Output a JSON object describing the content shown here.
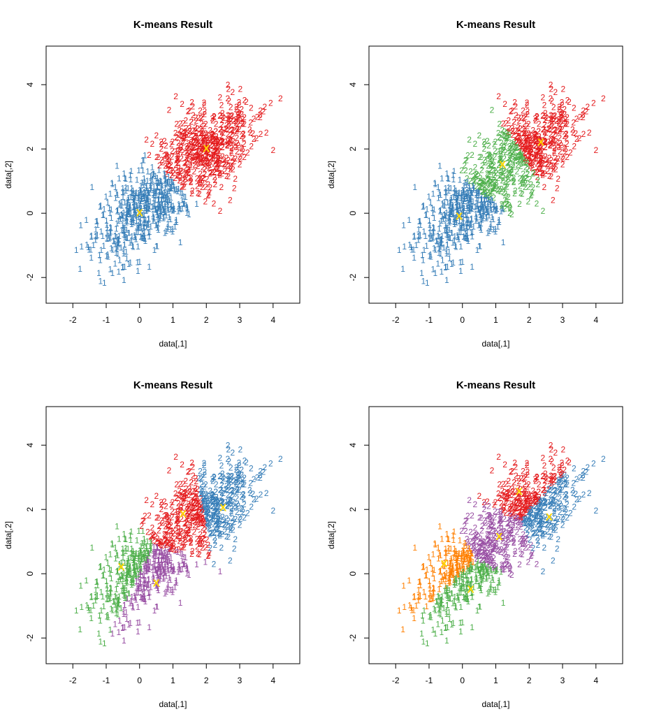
{
  "colors": {
    "red": "#e41a1c",
    "blue": "#377eb8",
    "green": "#4daf4a",
    "purple": "#984ea3",
    "orange": "#ff7f00",
    "centroid": "#ffd700"
  },
  "chart_data": [
    {
      "type": "scatter",
      "title": "K-means Result",
      "xlabel": "data[,1]",
      "ylabel": "data[,2]",
      "xlim": [
        -2.8,
        4.8
      ],
      "ylim": [
        -2.8,
        5.2
      ],
      "xticks": [
        -2,
        -1,
        0,
        1,
        2,
        3,
        4
      ],
      "yticks": [
        -2,
        0,
        2,
        4
      ],
      "k": 2,
      "point_labels": [
        "1",
        "2"
      ],
      "centroid_label": "X",
      "clusters": [
        {
          "id": 1,
          "label": "1",
          "color": "blue",
          "center": [
            0.0,
            0.0
          ]
        },
        {
          "id": 2,
          "label": "2",
          "color": "red",
          "center": [
            2.0,
            2.0
          ]
        }
      ],
      "centroids": [
        [
          0.0,
          0.0
        ],
        [
          2.0,
          2.0
        ]
      ]
    },
    {
      "type": "scatter",
      "title": "K-means Result",
      "xlabel": "data[,1]",
      "ylabel": "data[,2]",
      "xlim": [
        -2.8,
        4.8
      ],
      "ylim": [
        -2.8,
        5.2
      ],
      "xticks": [
        -2,
        -1,
        0,
        1,
        2,
        3,
        4
      ],
      "yticks": [
        -2,
        0,
        2,
        4
      ],
      "k": 3,
      "point_labels": [
        "1",
        "2"
      ],
      "centroid_label": "X",
      "clusters": [
        {
          "id": 1,
          "label": "1",
          "color": "blue",
          "center": [
            -0.1,
            -0.1
          ]
        },
        {
          "id": 2,
          "label": "2",
          "color": "green",
          "center": [
            1.2,
            1.5
          ]
        },
        {
          "id": 3,
          "label": "2",
          "color": "red",
          "center": [
            2.35,
            2.2
          ]
        }
      ],
      "centroids": [
        [
          -0.1,
          -0.1
        ],
        [
          1.2,
          1.5
        ],
        [
          2.35,
          2.2
        ]
      ]
    },
    {
      "type": "scatter",
      "title": "K-means Result",
      "xlabel": "data[,1]",
      "ylabel": "data[,2]",
      "xlim": [
        -2.8,
        4.8
      ],
      "ylim": [
        -2.8,
        5.2
      ],
      "xticks": [
        -2,
        -1,
        0,
        1,
        2,
        3,
        4
      ],
      "yticks": [
        -2,
        0,
        2,
        4
      ],
      "k": 4,
      "point_labels": [
        "1",
        "2"
      ],
      "centroid_label": "X",
      "clusters": [
        {
          "id": 1,
          "label": "1",
          "color": "green",
          "center": [
            -0.55,
            0.2
          ]
        },
        {
          "id": 2,
          "label": "1",
          "color": "purple",
          "center": [
            0.5,
            -0.3
          ]
        },
        {
          "id": 3,
          "label": "2",
          "color": "red",
          "center": [
            1.3,
            1.85
          ]
        },
        {
          "id": 4,
          "label": "2",
          "color": "blue",
          "center": [
            2.5,
            2.05
          ]
        }
      ],
      "centroids": [
        [
          -0.55,
          0.2
        ],
        [
          0.5,
          -0.3
        ],
        [
          1.3,
          1.85
        ],
        [
          2.5,
          2.05
        ]
      ]
    },
    {
      "type": "scatter",
      "title": "K-means Result",
      "xlabel": "data[,1]",
      "ylabel": "data[,2]",
      "xlim": [
        -2.8,
        4.8
      ],
      "ylim": [
        -2.8,
        5.2
      ],
      "xticks": [
        -2,
        -1,
        0,
        1,
        2,
        3,
        4
      ],
      "yticks": [
        -2,
        0,
        2,
        4
      ],
      "k": 5,
      "point_labels": [
        "1",
        "2"
      ],
      "centroid_label": "X",
      "clusters": [
        {
          "id": 1,
          "label": "1",
          "color": "orange",
          "center": [
            -0.55,
            0.3
          ]
        },
        {
          "id": 2,
          "label": "1",
          "color": "green",
          "center": [
            0.25,
            -0.5
          ]
        },
        {
          "id": 3,
          "label": "2",
          "color": "purple",
          "center": [
            1.1,
            1.15
          ]
        },
        {
          "id": 4,
          "label": "2",
          "color": "red",
          "center": [
            1.7,
            2.55
          ]
        },
        {
          "id": 5,
          "label": "2",
          "color": "blue",
          "center": [
            2.6,
            1.75
          ]
        }
      ],
      "centroids": [
        [
          -0.55,
          0.3
        ],
        [
          0.25,
          -0.5
        ],
        [
          1.1,
          1.15
        ],
        [
          1.7,
          2.55
        ],
        [
          2.6,
          1.75
        ]
      ]
    }
  ]
}
